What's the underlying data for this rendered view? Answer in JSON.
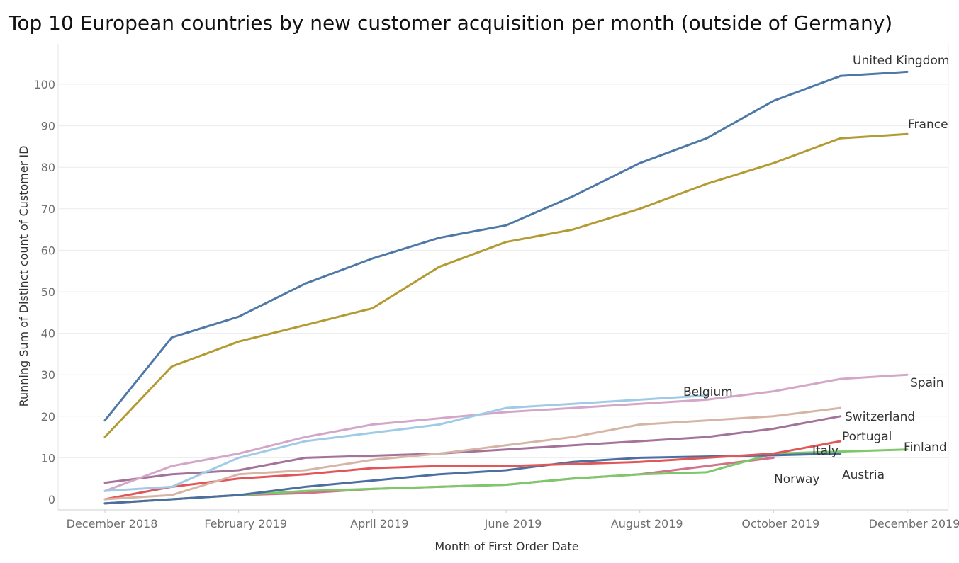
{
  "chart_data": {
    "type": "line",
    "title": "Top 10 European countries by new customer acquisition per month (outside of Germany)",
    "xlabel": "Month of First Order Date",
    "ylabel": "Running Sum of Distinct count of Customer ID",
    "x": [
      "Dec 2018",
      "Jan 2019",
      "Feb 2019",
      "Mar 2019",
      "Apr 2019",
      "May 2019",
      "Jun 2019",
      "Jul 2019",
      "Aug 2019",
      "Sep 2019",
      "Oct 2019",
      "Nov 2019",
      "Dec 2019"
    ],
    "x_tick_labels": [
      "December 2018",
      "February 2019",
      "April 2019",
      "June 2019",
      "August 2019",
      "October 2019",
      "December 2019"
    ],
    "x_tick_index": [
      0,
      2,
      4,
      6,
      8,
      10,
      12
    ],
    "yticks": [
      0,
      10,
      20,
      30,
      40,
      50,
      60,
      70,
      80,
      90,
      100
    ],
    "ylim": [
      -1.8,
      106
    ],
    "grid": "horizontal",
    "legend": "labels at line ends",
    "series": [
      {
        "name": "United Kingdom",
        "color": "#4e79a7",
        "values": [
          19,
          39,
          44,
          52,
          58,
          63,
          66,
          73,
          81,
          87,
          96,
          102,
          103
        ]
      },
      {
        "name": "France",
        "color": "#b39a32",
        "values": [
          15,
          32,
          38,
          42,
          46,
          56,
          62,
          65,
          70,
          76,
          81,
          87,
          88
        ]
      },
      {
        "name": "Belgium",
        "color": "#a0cbe8",
        "values": [
          2,
          3,
          10,
          14,
          16,
          18,
          22,
          23,
          24,
          25,
          null,
          null,
          null
        ]
      },
      {
        "name": "Spain",
        "color": "#d4a6c8",
        "values": [
          2,
          8,
          11,
          15,
          18,
          19.5,
          21,
          22,
          23,
          24,
          26,
          29,
          30
        ]
      },
      {
        "name": "Switzerland",
        "color": "#d7b5a6",
        "values": [
          0,
          1,
          6,
          7,
          9.5,
          11,
          13,
          15,
          18,
          19,
          20,
          22,
          null
        ]
      },
      {
        "name": "Portugal",
        "color": "#a3739a",
        "values": [
          4,
          6,
          7,
          10,
          10.5,
          11,
          12,
          13,
          14,
          15,
          17,
          20,
          null
        ]
      },
      {
        "name": "Italy",
        "color": "#e15759",
        "values": [
          0,
          3,
          5,
          6,
          7.5,
          8,
          8,
          8.5,
          9,
          10,
          11,
          14,
          null
        ]
      },
      {
        "name": "Austria",
        "color": "#4b6fa0",
        "values": [
          -1,
          0,
          1,
          3,
          4.5,
          6,
          7,
          9,
          10,
          10.3,
          10.6,
          11,
          null
        ]
      },
      {
        "name": "Finland",
        "color": "#7cc86a",
        "values": [
          -1,
          0,
          1,
          2,
          2.5,
          3,
          3.5,
          5,
          6,
          6.5,
          11,
          11.5,
          12
        ]
      },
      {
        "name": "Norway",
        "color": "#d4708a",
        "values": [
          -1,
          0,
          1,
          1.5,
          2.5,
          3,
          3.5,
          5,
          6,
          8,
          10,
          null,
          null
        ]
      }
    ],
    "label_positions": {
      "United Kingdom": {
        "x": 1203,
        "y": 91,
        "anchor": "start"
      },
      "France": {
        "x": 1281,
        "y": 181,
        "anchor": "start"
      },
      "Belgium": {
        "x": 964,
        "y": 559,
        "anchor": "start"
      },
      "Spain": {
        "x": 1284,
        "y": 546,
        "anchor": "start"
      },
      "Switzerland": {
        "x": 1192,
        "y": 594,
        "anchor": "start"
      },
      "Portugal": {
        "x": 1188,
        "y": 622,
        "anchor": "start"
      },
      "Italy": {
        "x": 1146,
        "y": 642,
        "anchor": "start"
      },
      "Austria": {
        "x": 1188,
        "y": 676,
        "anchor": "start"
      },
      "Finland": {
        "x": 1275,
        "y": 637,
        "anchor": "start"
      },
      "Norway": {
        "x": 1092,
        "y": 682,
        "anchor": "start"
      }
    }
  }
}
